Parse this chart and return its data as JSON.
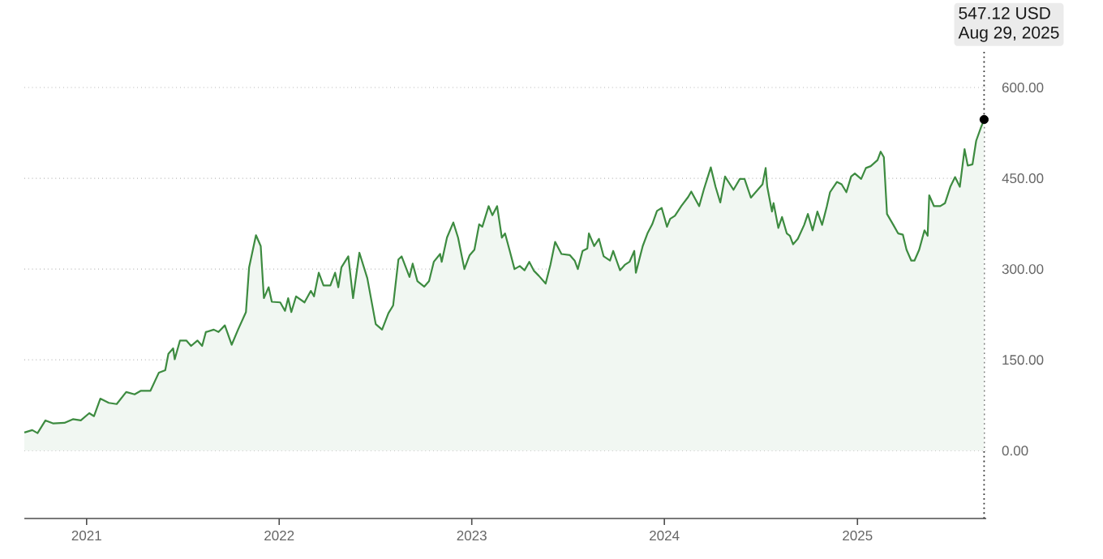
{
  "chart_data": {
    "type": "area",
    "x": [
      "2020-09-05",
      "2020-09-20",
      "2020-09-30",
      "2020-10-15",
      "2020-10-30",
      "2020-11-20",
      "2020-12-06",
      "2020-12-21",
      "2021-01-06",
      "2021-01-15",
      "2021-01-27",
      "2021-02-12",
      "2021-02-27",
      "2021-03-17",
      "2021-04-02",
      "2021-04-14",
      "2021-05-02",
      "2021-05-18",
      "2021-05-30",
      "2021-06-05",
      "2021-06-14",
      "2021-06-17",
      "2021-06-27",
      "2021-07-09",
      "2021-07-18",
      "2021-07-30",
      "2021-08-08",
      "2021-08-15",
      "2021-08-30",
      "2021-09-08",
      "2021-09-20",
      "2021-10-03",
      "2021-10-15",
      "2021-10-30",
      "2021-11-05",
      "2021-11-18",
      "2021-11-27",
      "2021-12-03",
      "2021-12-12",
      "2021-12-18",
      "2022-01-03",
      "2022-01-12",
      "2022-01-18",
      "2022-01-24",
      "2022-02-02",
      "2022-02-18",
      "2022-03-02",
      "2022-03-08",
      "2022-03-17",
      "2022-03-26",
      "2022-04-08",
      "2022-04-17",
      "2022-04-23",
      "2022-04-29",
      "2022-05-12",
      "2022-05-21",
      "2022-06-02",
      "2022-06-17",
      "2022-07-03",
      "2022-07-15",
      "2022-07-27",
      "2022-08-05",
      "2022-08-15",
      "2022-08-21",
      "2022-09-05",
      "2022-09-11",
      "2022-09-20",
      "2022-10-03",
      "2022-10-12",
      "2022-10-21",
      "2022-11-02",
      "2022-11-05",
      "2022-11-15",
      "2022-11-27",
      "2022-12-06",
      "2022-12-18",
      "2022-12-28",
      "2023-01-06",
      "2023-01-15",
      "2023-01-21",
      "2023-02-02",
      "2023-02-09",
      "2023-02-18",
      "2023-02-27",
      "2023-03-05",
      "2023-03-14",
      "2023-03-23",
      "2023-04-02",
      "2023-04-11",
      "2023-04-20",
      "2023-04-29",
      "2023-05-08",
      "2023-05-21",
      "2023-05-30",
      "2023-06-08",
      "2023-06-20",
      "2023-07-06",
      "2023-07-15",
      "2023-07-21",
      "2023-07-30",
      "2023-08-08",
      "2023-08-11",
      "2023-08-21",
      "2023-08-30",
      "2023-09-08",
      "2023-09-20",
      "2023-09-26",
      "2023-10-09",
      "2023-10-18",
      "2023-10-27",
      "2023-11-05",
      "2023-11-08",
      "2023-11-21",
      "2023-11-30",
      "2023-12-09",
      "2023-12-18",
      "2023-12-27",
      "2024-01-06",
      "2024-01-12",
      "2024-01-21",
      "2024-02-02",
      "2024-02-15",
      "2024-02-21",
      "2024-03-07",
      "2024-03-16",
      "2024-03-29",
      "2024-04-07",
      "2024-04-16",
      "2024-04-25",
      "2024-05-11",
      "2024-05-23",
      "2024-06-01",
      "2024-06-13",
      "2024-06-26",
      "2024-07-05",
      "2024-07-11",
      "2024-07-14",
      "2024-07-23",
      "2024-07-26",
      "2024-08-04",
      "2024-08-11",
      "2024-08-20",
      "2024-08-26",
      "2024-09-01",
      "2024-09-10",
      "2024-09-22",
      "2024-09-29",
      "2024-10-08",
      "2024-10-17",
      "2024-10-26",
      "2024-11-04",
      "2024-11-10",
      "2024-11-23",
      "2024-12-02",
      "2024-12-11",
      "2024-12-20",
      "2024-12-27",
      "2025-01-08",
      "2025-01-17",
      "2025-01-26",
      "2025-02-08",
      "2025-02-14",
      "2025-02-20",
      "2025-02-26",
      "2025-03-10",
      "2025-03-19",
      "2025-03-28",
      "2025-04-04",
      "2025-04-13",
      "2025-04-19",
      "2025-04-28",
      "2025-05-08",
      "2025-05-14",
      "2025-05-17",
      "2025-05-26",
      "2025-06-07",
      "2025-06-16",
      "2025-06-26",
      "2025-07-05",
      "2025-07-14",
      "2025-07-23",
      "2025-07-29",
      "2025-08-07",
      "2025-08-14",
      "2025-08-23",
      "2025-08-29"
    ],
    "series": [
      {
        "color": "#3d8b40",
        "values": [
          30,
          34,
          29,
          50,
          45,
          46,
          52,
          50,
          62,
          57,
          86,
          79,
          77,
          97,
          93,
          99,
          99,
          129,
          133,
          160,
          169,
          151,
          182,
          182,
          173,
          182,
          173,
          196,
          200,
          196,
          207,
          175,
          200,
          229,
          303,
          356,
          338,
          252,
          270,
          246,
          245,
          231,
          252,
          229,
          255,
          245,
          264,
          255,
          294,
          273,
          273,
          294,
          270,
          303,
          321,
          252,
          327,
          285,
          209,
          200,
          227,
          240,
          316,
          321,
          287,
          309,
          280,
          271,
          280,
          312,
          325,
          312,
          352,
          377,
          352,
          300,
          323,
          332,
          374,
          370,
          404,
          389,
          404,
          352,
          359,
          330,
          300,
          305,
          298,
          312,
          297,
          289,
          276,
          307,
          345,
          325,
          323,
          314,
          300,
          330,
          334,
          359,
          338,
          350,
          321,
          314,
          330,
          298,
          307,
          312,
          330,
          294,
          338,
          359,
          374,
          396,
          401,
          370,
          383,
          388,
          404,
          419,
          428,
          404,
          432,
          468,
          436,
          410,
          453,
          431,
          449,
          449,
          418,
          431,
          440,
          467,
          436,
          395,
          409,
          368,
          386,
          359,
          355,
          341,
          350,
          373,
          391,
          364,
          395,
          373,
          404,
          427,
          444,
          440,
          427,
          453,
          458,
          449,
          467,
          470,
          480,
          494,
          485,
          391,
          373,
          359,
          357,
          332,
          314,
          314,
          332,
          364,
          355,
          422,
          404,
          404,
          409,
          436,
          452,
          436,
          498,
          471,
          473,
          512,
          534,
          547.12
        ]
      },
      {
        "type": "scatter",
        "color": "#000000",
        "marker": "circle",
        "x": [
          "2025-08-29"
        ],
        "values": [
          547.12
        ]
      }
    ],
    "xlim": [
      "2020-09-05",
      "2025-09-02"
    ],
    "xticks": [
      "2021",
      "2022",
      "2023",
      "2024",
      "2025"
    ],
    "ylim": [
      -112,
      660
    ],
    "yticks": [
      {
        "value": 0,
        "label": "0.00"
      },
      {
        "value": 150,
        "label": "150.00"
      },
      {
        "value": 300,
        "label": "300.00"
      },
      {
        "value": 450,
        "label": "450.00"
      },
      {
        "value": 600,
        "label": "600.00"
      }
    ],
    "grid": "y",
    "ref_lines": [
      {
        "axis": "x",
        "value": "2025-08-29",
        "line_style": "dotted",
        "color": "#333333"
      }
    ],
    "annotations": [
      "547.12 USD",
      "Aug 29, 2025"
    ]
  }
}
